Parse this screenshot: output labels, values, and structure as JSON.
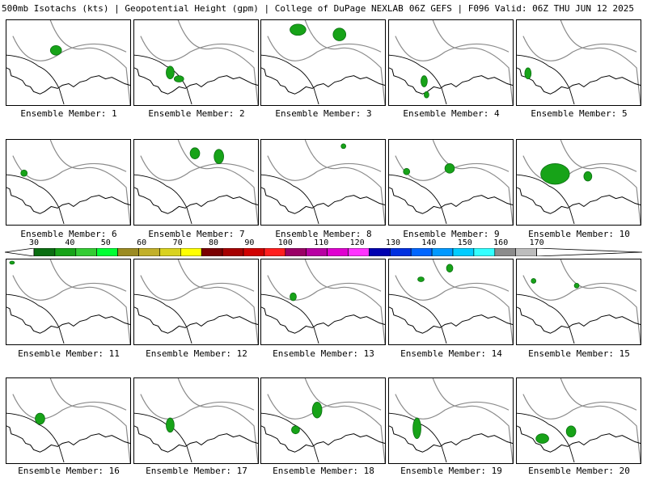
{
  "header": {
    "left": "500mb Isotachs (kts) | Geopotential Height (gpm) | College of DuPage NEXLAB",
    "right": "06Z GEFS | F096 Valid: 06Z THU JUN 12 2025"
  },
  "colorbar": {
    "ticks": [
      "30",
      "40",
      "50",
      "60",
      "70",
      "80",
      "90",
      "100",
      "110",
      "120",
      "130",
      "140",
      "150",
      "160",
      "170"
    ],
    "colors": [
      "#0b6e12",
      "#17a318",
      "#33cc33",
      "#00ff33",
      "#9b8b22",
      "#c2b02a",
      "#d9d21f",
      "#ffff00",
      "#7a0000",
      "#a50000",
      "#d00000",
      "#ff1f1f",
      "#9a0066",
      "#b800a3",
      "#e000d0",
      "#ff33ff",
      "#0000b0",
      "#0030e0",
      "#0066ff",
      "#0099ff",
      "#00ccff",
      "#33ffff",
      "#8c8c8c",
      "#bdbdbd"
    ]
  },
  "members": [
    {
      "label": "Ensemble Member: 1"
    },
    {
      "label": "Ensemble Member: 2"
    },
    {
      "label": "Ensemble Member: 3"
    },
    {
      "label": "Ensemble Member: 4"
    },
    {
      "label": "Ensemble Member: 5"
    },
    {
      "label": "Ensemble Member: 6"
    },
    {
      "label": "Ensemble Member: 7"
    },
    {
      "label": "Ensemble Member: 8"
    },
    {
      "label": "Ensemble Member: 9"
    },
    {
      "label": "Ensemble Member: 10"
    },
    {
      "label": "Ensemble Member: 11"
    },
    {
      "label": "Ensemble Member: 12"
    },
    {
      "label": "Ensemble Member: 13"
    },
    {
      "label": "Ensemble Member: 14"
    },
    {
      "label": "Ensemble Member: 15"
    },
    {
      "label": "Ensemble Member: 16"
    },
    {
      "label": "Ensemble Member: 17"
    },
    {
      "label": "Ensemble Member: 18"
    },
    {
      "label": "Ensemble Member: 19"
    },
    {
      "label": "Ensemble Member: 20"
    }
  ]
}
